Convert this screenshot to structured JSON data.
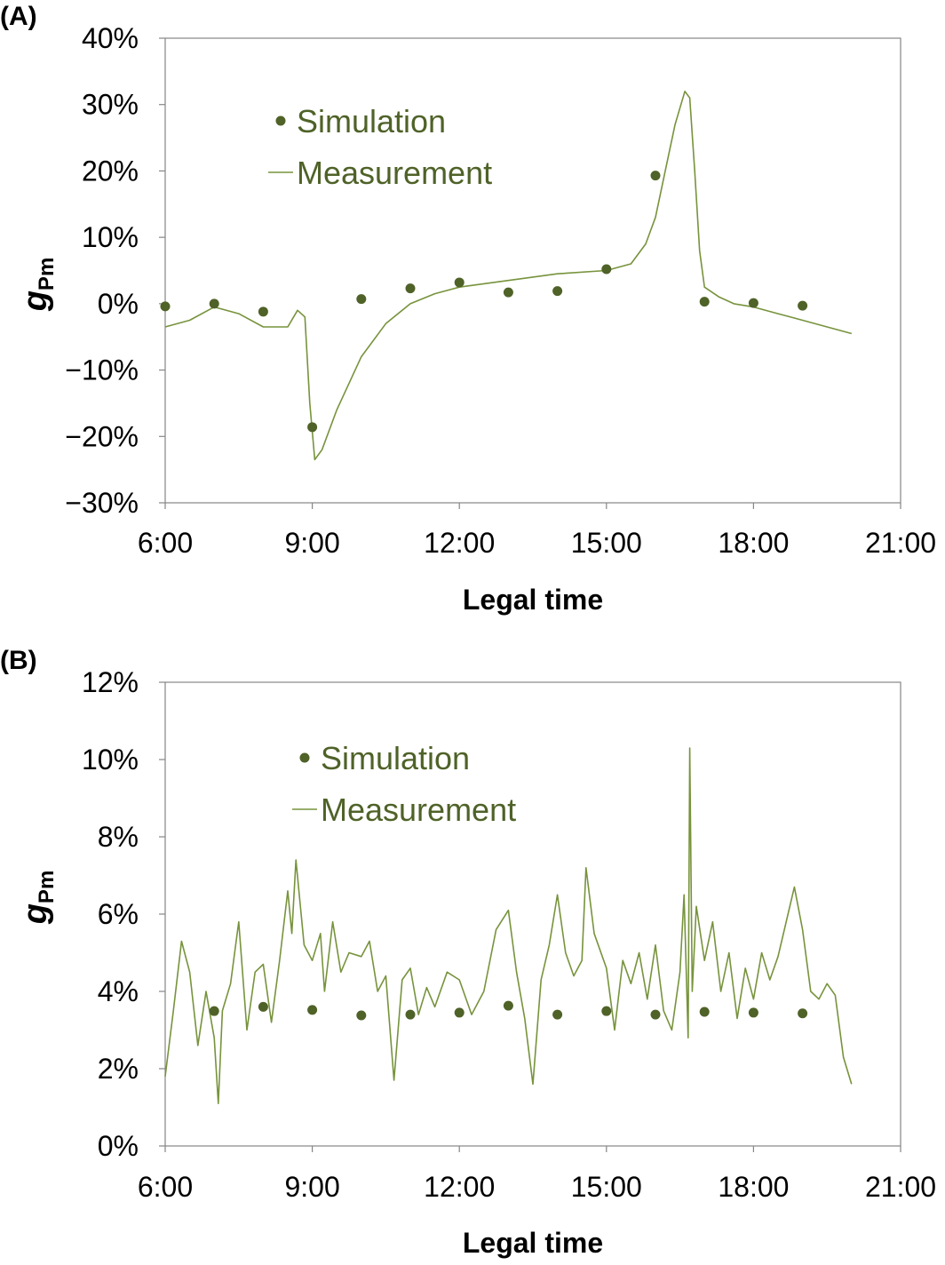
{
  "colors": {
    "measurement": "#77933c",
    "simulation": "#4f6228",
    "legend_text": "#4f6228"
  },
  "chart_data": [
    {
      "type": "line",
      "panel_label": "(A)",
      "xlabel": "Legal time",
      "ylabel": "g",
      "ylabel_sub": "Pm",
      "xlim": [
        "6:00",
        "21:00"
      ],
      "ylim": [
        -30,
        40
      ],
      "xticks": [
        "6:00",
        "9:00",
        "12:00",
        "15:00",
        "18:00",
        "21:00"
      ],
      "yticks": [
        "40%",
        "30%",
        "20%",
        "10%",
        "0%",
        "−10%",
        "−20%",
        "−30%"
      ],
      "ytick_values": [
        40,
        30,
        20,
        10,
        0,
        -10,
        -20,
        -30
      ],
      "grid": false,
      "legend": {
        "placement": "top-left",
        "entries": [
          "Simulation",
          "Measurement"
        ]
      },
      "series": [
        {
          "name": "Simulation",
          "kind": "scatter",
          "x": [
            "6:00",
            "7:00",
            "8:00",
            "9:00",
            "10:00",
            "11:00",
            "12:00",
            "13:00",
            "14:00",
            "15:00",
            "16:00",
            "17:00",
            "18:00",
            "19:00"
          ],
          "y": [
            -0.4,
            0.0,
            -1.2,
            -18.6,
            0.7,
            2.3,
            3.2,
            1.7,
            1.9,
            5.2,
            19.3,
            0.3,
            0.1,
            -0.3
          ]
        },
        {
          "name": "Measurement",
          "kind": "line",
          "x": [
            "6:00",
            "6:30",
            "7:00",
            "7:30",
            "8:00",
            "8:30",
            "8:42",
            "8:51",
            "8:57",
            "9:03",
            "9:12",
            "9:30",
            "10:00",
            "10:30",
            "11:00",
            "11:30",
            "12:00",
            "13:00",
            "14:00",
            "15:00",
            "15:30",
            "15:48",
            "16:00",
            "16:12",
            "16:24",
            "16:36",
            "16:42",
            "16:48",
            "16:54",
            "17:00",
            "17:18",
            "17:36",
            "18:00",
            "18:30",
            "19:00",
            "19:30",
            "20:00"
          ],
          "y": [
            -3.5,
            -2.5,
            -0.5,
            -1.5,
            -3.5,
            -3.5,
            -1.0,
            -2.0,
            -15,
            -23.5,
            -22,
            -16,
            -8,
            -3,
            0,
            1.5,
            2.5,
            3.5,
            4.5,
            5,
            6,
            9,
            13,
            20,
            27,
            32,
            31,
            20,
            8,
            2.5,
            1,
            0,
            -0.5,
            -1.5,
            -2.5,
            -3.5,
            -4.5
          ]
        }
      ]
    },
    {
      "type": "line",
      "panel_label": "(B)",
      "xlabel": "Legal time",
      "ylabel": "g",
      "ylabel_sub": "Pm",
      "xlim": [
        "6:00",
        "21:00"
      ],
      "ylim": [
        0,
        12
      ],
      "xticks": [
        "6:00",
        "9:00",
        "12:00",
        "15:00",
        "18:00",
        "21:00"
      ],
      "yticks": [
        "12%",
        "10%",
        "8%",
        "6%",
        "4%",
        "2%",
        "0%"
      ],
      "ytick_values": [
        12,
        10,
        8,
        6,
        4,
        2,
        0
      ],
      "grid": false,
      "legend": {
        "placement": "top-left",
        "entries": [
          "Simulation",
          "Measurement"
        ]
      },
      "series": [
        {
          "name": "Simulation",
          "kind": "scatter",
          "x": [
            "7:00",
            "8:00",
            "9:00",
            "10:00",
            "11:00",
            "12:00",
            "13:00",
            "14:00",
            "15:00",
            "16:00",
            "17:00",
            "18:00",
            "19:00"
          ],
          "y": [
            3.49,
            3.6,
            3.52,
            3.38,
            3.4,
            3.45,
            3.63,
            3.4,
            3.49,
            3.4,
            3.47,
            3.45,
            3.43
          ]
        },
        {
          "name": "Measurement",
          "kind": "line",
          "x": [
            "6:00",
            "6:10",
            "6:20",
            "6:30",
            "6:40",
            "6:50",
            "7:00",
            "7:05",
            "7:10",
            "7:20",
            "7:30",
            "7:40",
            "7:50",
            "8:00",
            "8:10",
            "8:20",
            "8:30",
            "8:35",
            "8:40",
            "8:50",
            "9:00",
            "9:10",
            "9:15",
            "9:25",
            "9:35",
            "9:45",
            "10:00",
            "10:10",
            "10:20",
            "10:30",
            "10:40",
            "10:50",
            "11:00",
            "11:10",
            "11:20",
            "11:30",
            "11:45",
            "12:00",
            "12:15",
            "12:30",
            "12:45",
            "13:00",
            "13:10",
            "13:20",
            "13:30",
            "13:40",
            "13:50",
            "14:00",
            "14:10",
            "14:20",
            "14:30",
            "14:35",
            "14:45",
            "15:00",
            "15:10",
            "15:20",
            "15:30",
            "15:40",
            "15:50",
            "16:00",
            "16:10",
            "16:20",
            "16:30",
            "16:35",
            "16:40",
            "16:42",
            "16:45",
            "16:50",
            "17:00",
            "17:10",
            "17:20",
            "17:30",
            "17:40",
            "17:50",
            "18:00",
            "18:10",
            "18:20",
            "18:30",
            "18:40",
            "18:50",
            "19:00",
            "19:10",
            "19:20",
            "19:30",
            "19:40",
            "19:50",
            "20:00"
          ],
          "y": [
            1.8,
            3.5,
            5.3,
            4.5,
            2.6,
            4.0,
            2.8,
            1.1,
            3.5,
            4.2,
            5.8,
            3.0,
            4.5,
            4.7,
            3.2,
            4.8,
            6.6,
            5.5,
            7.4,
            5.2,
            4.8,
            5.5,
            4.0,
            5.8,
            4.5,
            5.0,
            4.9,
            5.3,
            4.0,
            4.4,
            1.7,
            4.3,
            4.6,
            3.4,
            4.1,
            3.6,
            4.5,
            4.3,
            3.4,
            4.0,
            5.6,
            6.1,
            4.5,
            3.3,
            1.6,
            4.3,
            5.2,
            6.5,
            5.0,
            4.4,
            4.8,
            7.2,
            5.5,
            4.6,
            3.0,
            4.8,
            4.2,
            5.0,
            3.8,
            5.2,
            3.5,
            3.0,
            4.5,
            6.5,
            2.8,
            10.3,
            4.0,
            6.2,
            4.8,
            5.8,
            4.0,
            5.0,
            3.3,
            4.6,
            3.8,
            5.0,
            4.3,
            4.9,
            5.8,
            6.7,
            5.6,
            4.0,
            3.8,
            4.2,
            3.9,
            2.3,
            1.6
          ]
        }
      ]
    }
  ]
}
